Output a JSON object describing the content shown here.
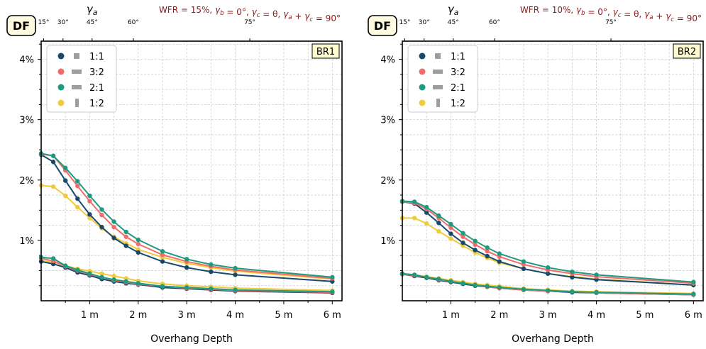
{
  "legend_series": [
    {
      "label": "1:1",
      "color": "#17496b",
      "marker": "▪",
      "marker_rotate": false
    },
    {
      "label": "3:2",
      "color": "#f26b6b",
      "marker": "▬",
      "marker_rotate": false
    },
    {
      "label": "2:1",
      "color": "#1d9b7e",
      "marker": "▬",
      "marker_rotate": false
    },
    {
      "label": "1:2",
      "color": "#f0cb3c",
      "marker": "▬",
      "marker_rotate": true
    }
  ],
  "chart_data": [
    {
      "type": "line",
      "panel_badge": "DF",
      "region_label": "BR1",
      "annotation": "WFR = 15%, γ_b = 0°, γ_c = θ, γ_a + γ_c = 90°",
      "xlabel": "Overhang Depth",
      "top_axis_label": "γ_a",
      "x_tick_labels": [
        "1 m",
        "2 m",
        "3 m",
        "4 m",
        "5 m",
        "6 m"
      ],
      "x_ticks": [
        1,
        2,
        3,
        4,
        5,
        6
      ],
      "top_ticks": [
        {
          "x": 0.05,
          "label": "15°"
        },
        {
          "x": 0.45,
          "label": "30°"
        },
        {
          "x": 1.05,
          "label": "45°"
        },
        {
          "x": 1.9,
          "label": "60°"
        },
        {
          "x": 4.3,
          "label": "75°"
        }
      ],
      "y_tick_labels": [
        "1%",
        "2%",
        "3%",
        "4%"
      ],
      "y_ticks": [
        1,
        2,
        3,
        4
      ],
      "xlim": [
        0,
        6.2
      ],
      "ylim": [
        0,
        4.3
      ],
      "x": [
        0,
        0.25,
        0.5,
        0.75,
        1,
        1.25,
        1.5,
        1.75,
        2,
        2.5,
        3,
        3.5,
        4,
        6
      ],
      "series": [
        {
          "name": "1:1",
          "group": "upper",
          "values": [
            2.42,
            2.3,
            1.99,
            1.69,
            1.43,
            1.22,
            1.04,
            0.91,
            0.8,
            0.65,
            0.55,
            0.48,
            0.43,
            0.32
          ]
        },
        {
          "name": "3:2",
          "group": "upper",
          "values": [
            2.43,
            2.4,
            2.16,
            1.9,
            1.65,
            1.42,
            1.22,
            1.06,
            0.94,
            0.76,
            0.65,
            0.57,
            0.51,
            0.37
          ]
        },
        {
          "name": "2:1",
          "group": "upper",
          "values": [
            2.44,
            2.4,
            2.2,
            1.98,
            1.74,
            1.51,
            1.31,
            1.14,
            1.01,
            0.82,
            0.69,
            0.6,
            0.54,
            0.39
          ]
        },
        {
          "name": "1:2",
          "group": "upper",
          "values": [
            1.91,
            1.89,
            1.74,
            1.55,
            1.37,
            1.2,
            1.06,
            0.95,
            0.85,
            0.72,
            0.62,
            0.55,
            0.49,
            0.36
          ]
        },
        {
          "name": "1:1",
          "group": "lower",
          "values": [
            0.65,
            0.61,
            0.55,
            0.47,
            0.42,
            0.36,
            0.32,
            0.29,
            0.27,
            0.22,
            0.2,
            0.18,
            0.16,
            0.13
          ]
        },
        {
          "name": "3:2",
          "group": "lower",
          "values": [
            0.7,
            0.66,
            0.57,
            0.5,
            0.44,
            0.39,
            0.34,
            0.31,
            0.28,
            0.24,
            0.21,
            0.19,
            0.17,
            0.14
          ]
        },
        {
          "name": "2:1",
          "group": "lower",
          "values": [
            0.72,
            0.7,
            0.58,
            0.51,
            0.45,
            0.39,
            0.35,
            0.32,
            0.29,
            0.24,
            0.22,
            0.2,
            0.18,
            0.15
          ]
        },
        {
          "name": "1:2",
          "group": "lower",
          "values": [
            0.66,
            0.64,
            0.58,
            0.53,
            0.49,
            0.45,
            0.41,
            0.37,
            0.33,
            0.28,
            0.25,
            0.23,
            0.21,
            0.17
          ]
        }
      ]
    },
    {
      "type": "line",
      "panel_badge": "DF",
      "region_label": "BR2",
      "annotation": "WFR = 10%, γ_b = 0°, γ_c = θ, γ_a + γ_c = 90°",
      "xlabel": "Overhang Depth",
      "top_axis_label": "γ_a",
      "x_tick_labels": [
        "1 m",
        "2 m",
        "3 m",
        "4 m",
        "5 m",
        "6 m"
      ],
      "x_ticks": [
        1,
        2,
        3,
        4,
        5,
        6
      ],
      "top_ticks": [
        {
          "x": 0.05,
          "label": "15°"
        },
        {
          "x": 0.45,
          "label": "30°"
        },
        {
          "x": 1.05,
          "label": "45°"
        },
        {
          "x": 1.9,
          "label": "60°"
        },
        {
          "x": 4.3,
          "label": "75°"
        }
      ],
      "y_tick_labels": [
        "1%",
        "2%",
        "3%",
        "4%"
      ],
      "y_ticks": [
        1,
        2,
        3,
        4
      ],
      "xlim": [
        0,
        6.2
      ],
      "ylim": [
        0,
        4.3
      ],
      "x": [
        0,
        0.25,
        0.5,
        0.75,
        1,
        1.25,
        1.5,
        1.75,
        2,
        2.5,
        3,
        3.5,
        4,
        6
      ],
      "series": [
        {
          "name": "1:1",
          "group": "upper",
          "values": [
            1.64,
            1.61,
            1.46,
            1.29,
            1.11,
            0.96,
            0.84,
            0.74,
            0.65,
            0.53,
            0.45,
            0.39,
            0.35,
            0.26
          ]
        },
        {
          "name": "3:2",
          "group": "upper",
          "values": [
            1.64,
            1.62,
            1.52,
            1.37,
            1.21,
            1.06,
            0.93,
            0.82,
            0.73,
            0.6,
            0.51,
            0.45,
            0.4,
            0.29
          ]
        },
        {
          "name": "2:1",
          "group": "upper",
          "values": [
            1.65,
            1.64,
            1.55,
            1.41,
            1.27,
            1.12,
            0.99,
            0.88,
            0.78,
            0.65,
            0.55,
            0.48,
            0.43,
            0.31
          ]
        },
        {
          "name": "1:2",
          "group": "upper",
          "values": [
            1.37,
            1.37,
            1.28,
            1.15,
            1.03,
            0.91,
            0.8,
            0.71,
            0.63,
            0.53,
            0.45,
            0.4,
            0.36,
            0.26
          ]
        },
        {
          "name": "1:1",
          "group": "lower",
          "values": [
            0.44,
            0.41,
            0.38,
            0.34,
            0.31,
            0.28,
            0.25,
            0.23,
            0.21,
            0.18,
            0.16,
            0.14,
            0.13,
            0.1
          ]
        },
        {
          "name": "3:2",
          "group": "lower",
          "values": [
            0.44,
            0.42,
            0.39,
            0.35,
            0.32,
            0.29,
            0.26,
            0.23,
            0.21,
            0.18,
            0.16,
            0.15,
            0.13,
            0.1
          ]
        },
        {
          "name": "2:1",
          "group": "lower",
          "values": [
            0.45,
            0.43,
            0.39,
            0.36,
            0.32,
            0.29,
            0.26,
            0.24,
            0.22,
            0.19,
            0.17,
            0.15,
            0.14,
            0.11
          ]
        },
        {
          "name": "1:2",
          "group": "lower",
          "values": [
            0.45,
            0.43,
            0.4,
            0.37,
            0.34,
            0.31,
            0.28,
            0.26,
            0.24,
            0.2,
            0.18,
            0.16,
            0.15,
            0.12
          ]
        }
      ]
    }
  ]
}
